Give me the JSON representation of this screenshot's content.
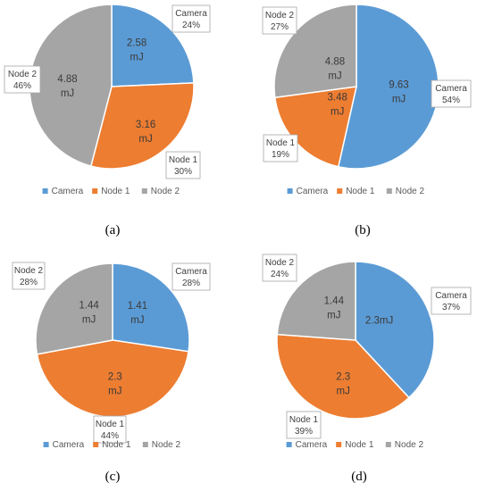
{
  "chart_data": [
    {
      "type": "pie",
      "panel_label": "(a)",
      "legend": [
        "Camera",
        "Node 1",
        "Node 2"
      ],
      "legend_position": "bottom",
      "slices": [
        {
          "name": "Camera",
          "value": 2.58,
          "value_label": "2.58",
          "unit_label": "mJ",
          "percent_label": "24%",
          "color": "#5B9BD5"
        },
        {
          "name": "Node 1",
          "value": 3.16,
          "value_label": "3.16",
          "unit_label": "mJ",
          "percent_label": "30%",
          "color": "#ED7D31"
        },
        {
          "name": "Node 2",
          "value": 4.88,
          "value_label": "4.88",
          "unit_label": "mJ",
          "percent_label": "46%",
          "color": "#A5A5A5"
        }
      ]
    },
    {
      "type": "pie",
      "panel_label": "(b)",
      "legend": [
        "Camera",
        "Node 1",
        "Node 2"
      ],
      "legend_position": "bottom",
      "slices": [
        {
          "name": "Camera",
          "value": 9.63,
          "value_label": "9.63",
          "unit_label": "mJ",
          "percent_label": "54%",
          "color": "#5B9BD5"
        },
        {
          "name": "Node 1",
          "value": 3.48,
          "value_label": "3.48",
          "unit_label": "mJ",
          "percent_label": "19%",
          "color": "#ED7D31"
        },
        {
          "name": "Node 2",
          "value": 4.88,
          "value_label": "4.88",
          "unit_label": "mJ",
          "percent_label": "27%",
          "color": "#A5A5A5"
        }
      ]
    },
    {
      "type": "pie",
      "panel_label": "(c)",
      "legend": [
        "Camera",
        "Node 1",
        "Node 2"
      ],
      "legend_position": "bottom",
      "slices": [
        {
          "name": "Camera",
          "value": 1.41,
          "value_label": "1.41",
          "unit_label": "mJ",
          "percent_label": "28%",
          "color": "#5B9BD5"
        },
        {
          "name": "Node 1",
          "value": 2.3,
          "value_label": "2.3",
          "unit_label": "mJ",
          "percent_label": "44%",
          "color": "#ED7D31"
        },
        {
          "name": "Node 2",
          "value": 1.44,
          "value_label": "1.44",
          "unit_label": "mJ",
          "percent_label": "28%",
          "color": "#A5A5A5"
        }
      ]
    },
    {
      "type": "pie",
      "panel_label": "(d)",
      "legend": [
        "Camera",
        "Node 1",
        "Node 2"
      ],
      "legend_position": "bottom",
      "slices": [
        {
          "name": "Camera",
          "value": 2.3,
          "value_label": "2.3mJ",
          "unit_label": "",
          "percent_label": "37%",
          "color": "#5B9BD5"
        },
        {
          "name": "Node 1",
          "value": 2.3,
          "value_label": "2.3",
          "unit_label": "mJ",
          "percent_label": "39%",
          "color": "#ED7D31"
        },
        {
          "name": "Node 2",
          "value": 1.44,
          "value_label": "1.44",
          "unit_label": "mJ",
          "percent_label": "24%",
          "color": "#A5A5A5"
        }
      ]
    }
  ]
}
